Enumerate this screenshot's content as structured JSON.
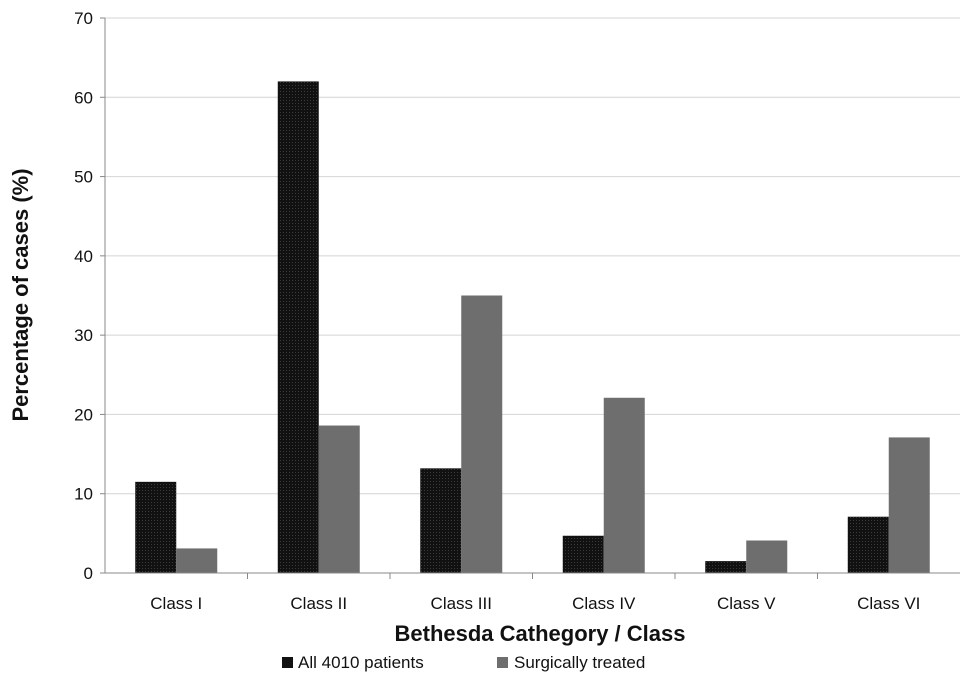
{
  "chart_data": {
    "type": "bar",
    "title": "",
    "xlabel": "Bethesda Cathegory / Class",
    "ylabel": "Percentage of cases (%)",
    "categories": [
      "Class I",
      "Class II",
      "Class III",
      "Class IV",
      "Class V",
      "Class VI"
    ],
    "series": [
      {
        "name": "All 4010 patients",
        "values": [
          11.5,
          62.0,
          13.2,
          4.7,
          1.5,
          7.1
        ],
        "color": "#111111"
      },
      {
        "name": "Surgically treated",
        "values": [
          3.1,
          18.6,
          35.0,
          22.1,
          4.1,
          17.1
        ],
        "color": "#6e6e6e"
      }
    ],
    "ylim": [
      0,
      70
    ],
    "yticks": [
      0,
      10,
      20,
      30,
      40,
      50,
      60,
      70
    ],
    "grid": true,
    "legend_position": "bottom"
  }
}
